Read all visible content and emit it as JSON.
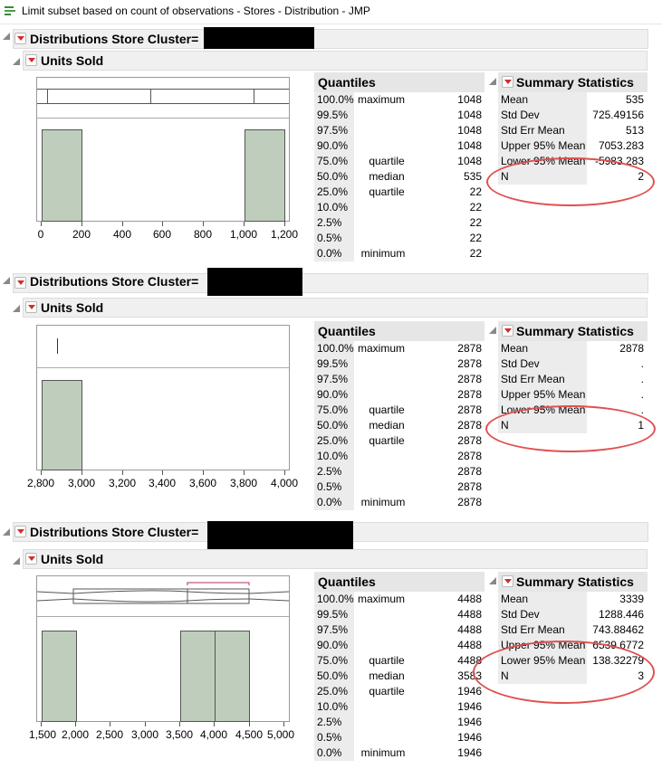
{
  "window": {
    "title": "Limit subset based on count of observations - Stores - Distribution - JMP"
  },
  "sections": [
    {
      "header": "Distributions Store Cluster=",
      "subheader": "Units Sold",
      "axis_ticks": [
        "0",
        "200",
        "400",
        "600",
        "800",
        "1,000",
        "1,200"
      ],
      "quantiles_title": "Quantiles",
      "quantiles": [
        {
          "pct": "100.0%",
          "label": "maximum",
          "value": "1048"
        },
        {
          "pct": "99.5%",
          "label": "",
          "value": "1048"
        },
        {
          "pct": "97.5%",
          "label": "",
          "value": "1048"
        },
        {
          "pct": "90.0%",
          "label": "",
          "value": "1048"
        },
        {
          "pct": "75.0%",
          "label": "quartile",
          "value": "1048"
        },
        {
          "pct": "50.0%",
          "label": "median",
          "value": "535"
        },
        {
          "pct": "25.0%",
          "label": "quartile",
          "value": "22"
        },
        {
          "pct": "10.0%",
          "label": "",
          "value": "22"
        },
        {
          "pct": "2.5%",
          "label": "",
          "value": "22"
        },
        {
          "pct": "0.5%",
          "label": "",
          "value": "22"
        },
        {
          "pct": "0.0%",
          "label": "minimum",
          "value": "22"
        }
      ],
      "stats_title": "Summary Statistics",
      "stats": [
        {
          "name": "Mean",
          "value": "535"
        },
        {
          "name": "Std Dev",
          "value": "725.49156"
        },
        {
          "name": "Std Err Mean",
          "value": "513"
        },
        {
          "name": "Upper 95% Mean",
          "value": "7053.283"
        },
        {
          "name": "Lower 95% Mean",
          "value": "-5983.283"
        },
        {
          "name": "N",
          "value": "2"
        }
      ]
    },
    {
      "header": "Distributions Store Cluster=",
      "subheader": "Units Sold",
      "axis_ticks": [
        "2,800",
        "3,000",
        "3,200",
        "3,400",
        "3,600",
        "3,800",
        "4,000"
      ],
      "quantiles_title": "Quantiles",
      "quantiles": [
        {
          "pct": "100.0%",
          "label": "maximum",
          "value": "2878"
        },
        {
          "pct": "99.5%",
          "label": "",
          "value": "2878"
        },
        {
          "pct": "97.5%",
          "label": "",
          "value": "2878"
        },
        {
          "pct": "90.0%",
          "label": "",
          "value": "2878"
        },
        {
          "pct": "75.0%",
          "label": "quartile",
          "value": "2878"
        },
        {
          "pct": "50.0%",
          "label": "median",
          "value": "2878"
        },
        {
          "pct": "25.0%",
          "label": "quartile",
          "value": "2878"
        },
        {
          "pct": "10.0%",
          "label": "",
          "value": "2878"
        },
        {
          "pct": "2.5%",
          "label": "",
          "value": "2878"
        },
        {
          "pct": "0.5%",
          "label": "",
          "value": "2878"
        },
        {
          "pct": "0.0%",
          "label": "minimum",
          "value": "2878"
        }
      ],
      "stats_title": "Summary Statistics",
      "stats": [
        {
          "name": "Mean",
          "value": "2878"
        },
        {
          "name": "Std Dev",
          "value": "."
        },
        {
          "name": "Std Err Mean",
          "value": "."
        },
        {
          "name": "Upper 95% Mean",
          "value": "."
        },
        {
          "name": "Lower 95% Mean",
          "value": "."
        },
        {
          "name": "N",
          "value": "1"
        }
      ]
    },
    {
      "header": "Distributions Store Cluster=",
      "subheader": "Units Sold",
      "axis_ticks": [
        "1,500",
        "2,000",
        "2,500",
        "3,000",
        "3,500",
        "4,000",
        "4,500",
        "5,000"
      ],
      "quantiles_title": "Quantiles",
      "quantiles": [
        {
          "pct": "100.0%",
          "label": "maximum",
          "value": "4488"
        },
        {
          "pct": "99.5%",
          "label": "",
          "value": "4488"
        },
        {
          "pct": "97.5%",
          "label": "",
          "value": "4488"
        },
        {
          "pct": "90.0%",
          "label": "",
          "value": "4488"
        },
        {
          "pct": "75.0%",
          "label": "quartile",
          "value": "4488"
        },
        {
          "pct": "50.0%",
          "label": "median",
          "value": "3583"
        },
        {
          "pct": "25.0%",
          "label": "quartile",
          "value": "1946"
        },
        {
          "pct": "10.0%",
          "label": "",
          "value": "1946"
        },
        {
          "pct": "2.5%",
          "label": "",
          "value": "1946"
        },
        {
          "pct": "0.5%",
          "label": "",
          "value": "1946"
        },
        {
          "pct": "0.0%",
          "label": "minimum",
          "value": "1946"
        }
      ],
      "stats_title": "Summary Statistics",
      "stats": [
        {
          "name": "Mean",
          "value": "3339"
        },
        {
          "name": "Std Dev",
          "value": "1288.446"
        },
        {
          "name": "Std Err Mean",
          "value": "743.88462"
        },
        {
          "name": "Upper 95% Mean",
          "value": "6539.6772"
        },
        {
          "name": "Lower 95% Mean",
          "value": "138.32279"
        },
        {
          "name": "N",
          "value": "3"
        }
      ]
    }
  ],
  "colors": {
    "annotation_circle": "#e05050",
    "histogram_fill": "#bfcdbd",
    "redacted": "#000000"
  }
}
